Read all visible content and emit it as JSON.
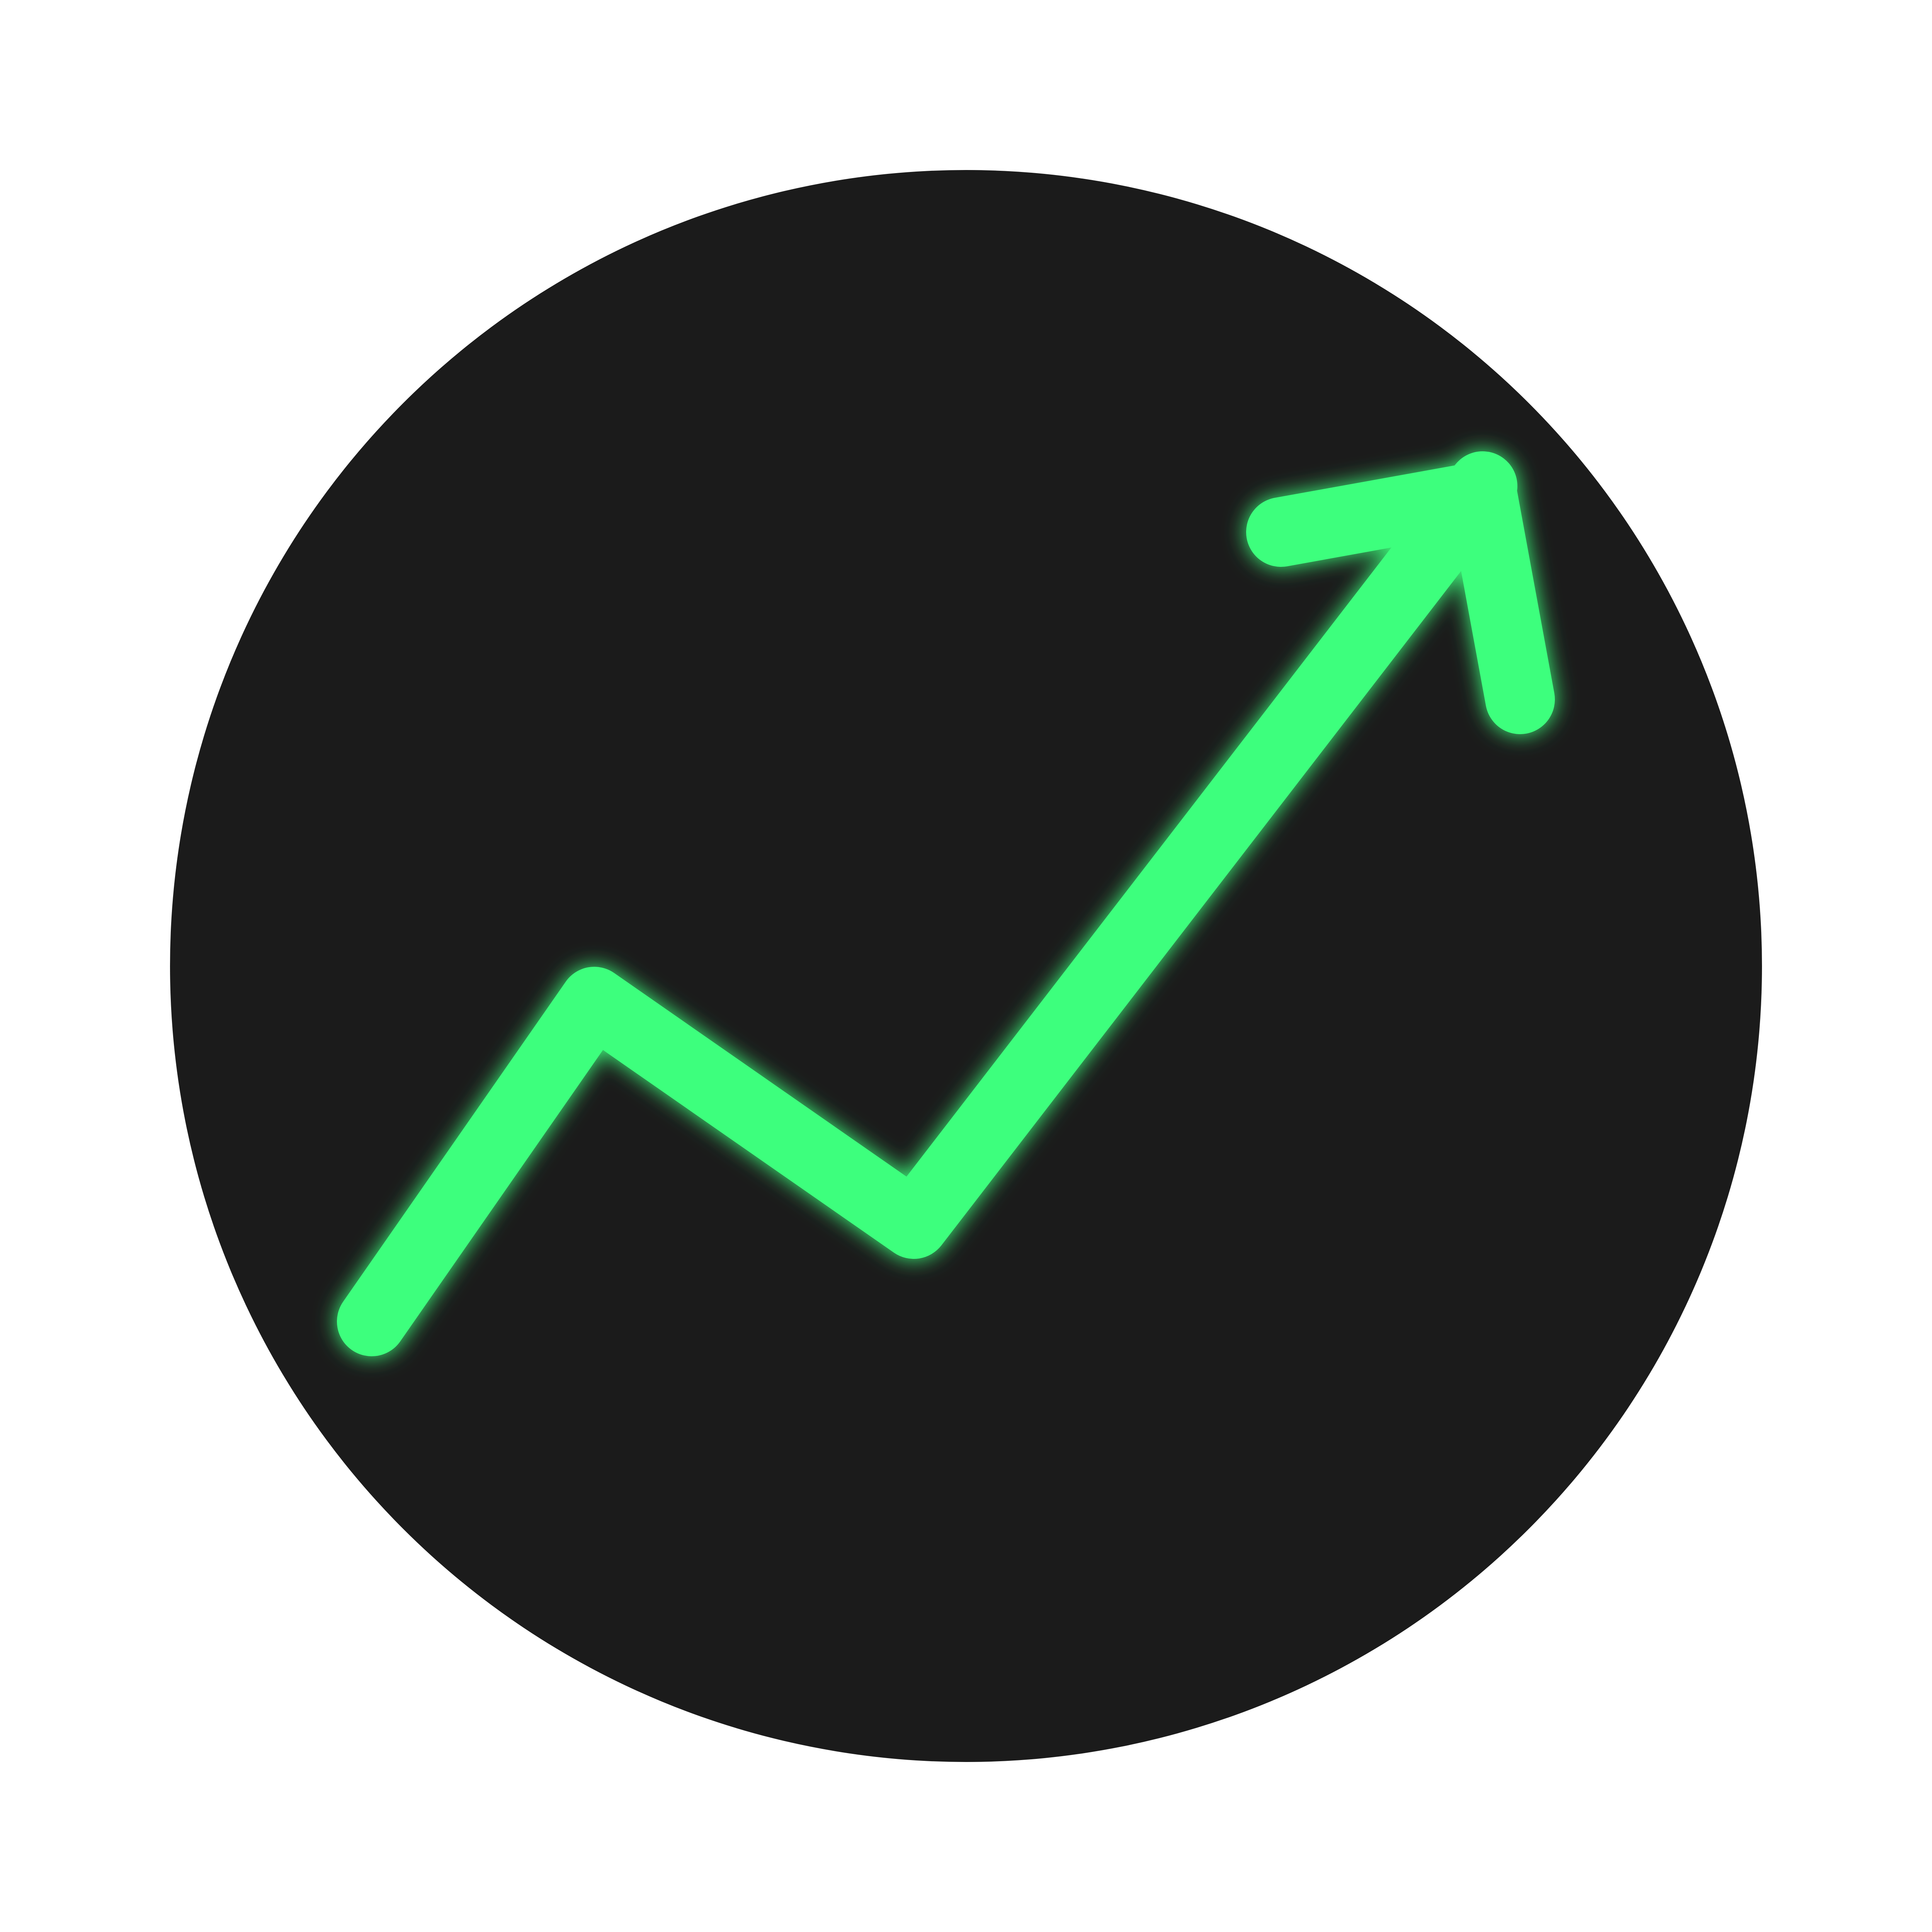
{
  "icon": {
    "name": "trending-up-icon",
    "colors": {
      "background": "#ffffff",
      "circle": "#1b1b1b",
      "arrow": "#3dff7d"
    }
  }
}
